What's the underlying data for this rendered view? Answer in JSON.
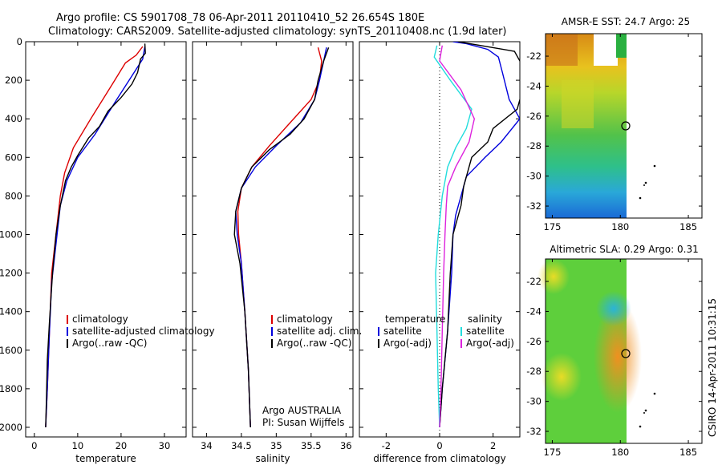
{
  "header": {
    "line1": "Argo profile: CS 5901708_78 06-Apr-2011 20110410_52 26.654S 180E",
    "line2": "Climatology: CARS2009. Satellite-adjusted climatology: synTS_20110408.nc (1.9d later)"
  },
  "side_label": "CSIRO 14-Apr-2011 10:31:15",
  "colors": {
    "climatology": "#dd0000",
    "satellite": "#0000dd",
    "argo": "#000000",
    "cyan": "#22dddd",
    "magenta": "#dd22dd"
  },
  "chart_data": [
    {
      "id": "temperature",
      "type": "line",
      "xlabel": "temperature",
      "xlim": [
        -2,
        35
      ],
      "ylim": [
        0,
        2050
      ],
      "y_inverted": true,
      "xticks": [
        0,
        10,
        20,
        30
      ],
      "yticks": [
        0,
        200,
        400,
        600,
        800,
        1000,
        1200,
        1400,
        1600,
        1800,
        2000
      ],
      "legend": [
        "climatology",
        "satellite-adjusted climatology",
        "Argo(..raw -QC)"
      ],
      "series": [
        {
          "name": "climatology",
          "color": "red",
          "points": [
            [
              25,
              25
            ],
            [
              23.5,
              70
            ],
            [
              21,
              110
            ],
            [
              18,
              220
            ],
            [
              13,
              400
            ],
            [
              9,
              550
            ],
            [
              7,
              680
            ],
            [
              6,
              800
            ],
            [
              5,
              1000
            ],
            [
              4,
              1200
            ],
            [
              3.5,
              1500
            ],
            [
              3,
              1800
            ],
            [
              2.6,
              2000
            ]
          ]
        },
        {
          "name": "satellite-adjusted climatology",
          "color": "blue",
          "points": [
            [
              25.5,
              25
            ],
            [
              25,
              90
            ],
            [
              23,
              160
            ],
            [
              19,
              300
            ],
            [
              14,
              480
            ],
            [
              10,
              600
            ],
            [
              7.5,
              720
            ],
            [
              6,
              850
            ],
            [
              5,
              1050
            ],
            [
              4,
              1250
            ],
            [
              3.5,
              1500
            ],
            [
              3,
              1800
            ],
            [
              2.6,
              2000
            ]
          ]
        },
        {
          "name": "Argo(..raw -QC)",
          "color": "black",
          "points": [
            [
              25.5,
              10
            ],
            [
              25.6,
              60
            ],
            [
              24.5,
              90
            ],
            [
              23.8,
              160
            ],
            [
              22.5,
              220
            ],
            [
              20,
              290
            ],
            [
              17,
              360
            ],
            [
              15,
              440
            ],
            [
              12.5,
              500
            ],
            [
              10,
              590
            ],
            [
              8.5,
              650
            ],
            [
              7.2,
              720
            ],
            [
              6,
              850
            ],
            [
              5,
              1000
            ],
            [
              4.2,
              1200
            ],
            [
              3.5,
              1450
            ],
            [
              3,
              1650
            ],
            [
              2.8,
              1850
            ],
            [
              2.6,
              2000
            ]
          ]
        }
      ]
    },
    {
      "id": "salinity",
      "type": "line",
      "xlabel": "salinity",
      "xlim": [
        33.8,
        36.1
      ],
      "ylim": [
        0,
        2050
      ],
      "y_inverted": true,
      "xticks": [
        34,
        34.5,
        35,
        35.5,
        36
      ],
      "legend": [
        "climatology",
        "satellite adj. clim.",
        "Argo(..raw -QC)"
      ],
      "annotation": [
        "Argo AUSTRALIA",
        "PI: Susan Wijffels"
      ],
      "series": [
        {
          "name": "climatology",
          "color": "red",
          "points": [
            [
              35.6,
              30
            ],
            [
              35.65,
              100
            ],
            [
              35.62,
              200
            ],
            [
              35.5,
              300
            ],
            [
              35.2,
              420
            ],
            [
              34.9,
              540
            ],
            [
              34.65,
              650
            ],
            [
              34.5,
              760
            ],
            [
              34.45,
              880
            ],
            [
              34.46,
              1000
            ],
            [
              34.5,
              1150
            ],
            [
              34.55,
              1400
            ],
            [
              34.6,
              1700
            ],
            [
              34.63,
              2000
            ]
          ]
        },
        {
          "name": "satellite adj. clim.",
          "color": "blue",
          "points": [
            [
              35.72,
              30
            ],
            [
              35.68,
              100
            ],
            [
              35.62,
              200
            ],
            [
              35.55,
              300
            ],
            [
              35.35,
              420
            ],
            [
              35.0,
              540
            ],
            [
              34.7,
              650
            ],
            [
              34.5,
              760
            ],
            [
              34.42,
              880
            ],
            [
              34.44,
              1000
            ],
            [
              34.5,
              1150
            ],
            [
              34.55,
              1400
            ],
            [
              34.6,
              1700
            ],
            [
              34.63,
              2000
            ]
          ]
        },
        {
          "name": "Argo(..raw -QC)",
          "color": "black",
          "points": [
            [
              35.75,
              30
            ],
            [
              35.68,
              100
            ],
            [
              35.6,
              200
            ],
            [
              35.55,
              300
            ],
            [
              35.4,
              400
            ],
            [
              35.2,
              480
            ],
            [
              34.9,
              560
            ],
            [
              34.65,
              650
            ],
            [
              34.5,
              760
            ],
            [
              34.42,
              880
            ],
            [
              34.4,
              1000
            ],
            [
              34.48,
              1150
            ],
            [
              34.55,
              1400
            ],
            [
              34.6,
              1700
            ],
            [
              34.63,
              2000
            ]
          ]
        }
      ]
    },
    {
      "id": "difference",
      "type": "line",
      "xlabel": "difference from climatology",
      "xlim": [
        -3,
        3
      ],
      "ylim": [
        0,
        2050
      ],
      "y_inverted": true,
      "xticks": [
        -2,
        0,
        2
      ],
      "legend_left_title": "temperature",
      "legend_left": [
        "satellite",
        "Argo(-adj)"
      ],
      "legend_right_title": "salinity",
      "legend_right": [
        "satellite",
        "Argo(-adj)"
      ],
      "series": [
        {
          "name": "temperature satellite",
          "color": "blue",
          "points": [
            [
              0.5,
              0
            ],
            [
              1.0,
              10
            ],
            [
              1.8,
              40
            ],
            [
              2.2,
              80
            ],
            [
              2.35,
              160
            ],
            [
              2.6,
              300
            ],
            [
              3.0,
              400
            ],
            [
              2.3,
              520
            ],
            [
              1.7,
              600
            ],
            [
              1.0,
              700
            ],
            [
              0.8,
              800
            ],
            [
              0.6,
              900
            ],
            [
              0.5,
              1000
            ],
            [
              0.45,
              1200
            ],
            [
              0.3,
              1500
            ],
            [
              0.1,
              1800
            ],
            [
              0.0,
              2000
            ]
          ]
        },
        {
          "name": "temperature Argo(-adj)",
          "color": "black",
          "points": [
            [
              0.7,
              0
            ],
            [
              2.8,
              50
            ],
            [
              3.0,
              100
            ],
            [
              3.2,
              200
            ],
            [
              2.9,
              350
            ],
            [
              2.0,
              450
            ],
            [
              1.8,
              520
            ],
            [
              1.2,
              600
            ],
            [
              0.9,
              750
            ],
            [
              0.8,
              850
            ],
            [
              0.5,
              1000
            ],
            [
              0.4,
              1200
            ],
            [
              0.3,
              1500
            ],
            [
              0.1,
              1800
            ],
            [
              0.0,
              2000
            ]
          ]
        },
        {
          "name": "salinity satellite",
          "color": "cyan",
          "points": [
            [
              -0.1,
              20
            ],
            [
              -0.2,
              80
            ],
            [
              0.4,
              200
            ],
            [
              1.2,
              350
            ],
            [
              1.0,
              450
            ],
            [
              0.6,
              550
            ],
            [
              0.3,
              650
            ],
            [
              0.1,
              800
            ],
            [
              -0.05,
              1000
            ],
            [
              -0.15,
              1200
            ],
            [
              -0.1,
              1500
            ],
            [
              -0.05,
              1800
            ],
            [
              0.0,
              2000
            ]
          ]
        },
        {
          "name": "salinity Argo(-adj)",
          "color": "magenta",
          "points": [
            [
              0.1,
              20
            ],
            [
              0,
              100
            ],
            [
              0.8,
              250
            ],
            [
              1.3,
              400
            ],
            [
              1.1,
              520
            ],
            [
              0.6,
              650
            ],
            [
              0.3,
              750
            ],
            [
              0.25,
              850
            ],
            [
              0.2,
              1000
            ],
            [
              0.15,
              1200
            ],
            [
              0.1,
              1500
            ],
            [
              0.05,
              1800
            ],
            [
              0.0,
              2000
            ]
          ]
        }
      ]
    },
    {
      "id": "sst_map",
      "type": "heatmap",
      "title": "AMSR-E SST: 24.7  Argo: 25",
      "xlim": [
        174.5,
        186
      ],
      "ylim": [
        -32.8,
        -20.5
      ],
      "xticks": [
        175,
        180,
        185
      ],
      "yticks": [
        -22,
        -24,
        -26,
        -28,
        -30,
        -32
      ],
      "argo_position": {
        "lon": 180,
        "lat": -26.654
      }
    },
    {
      "id": "sla_map",
      "type": "heatmap",
      "title": "Altimetric SLA: 0.29  Argo: 0.31",
      "xlim": [
        174.5,
        186
      ],
      "ylim": [
        -32.8,
        -20.5
      ],
      "xticks": [
        175,
        180,
        185
      ],
      "yticks": [
        -22,
        -24,
        -26,
        -28,
        -30,
        -32
      ],
      "argo_position": {
        "lon": 180,
        "lat": -26.654
      }
    }
  ]
}
